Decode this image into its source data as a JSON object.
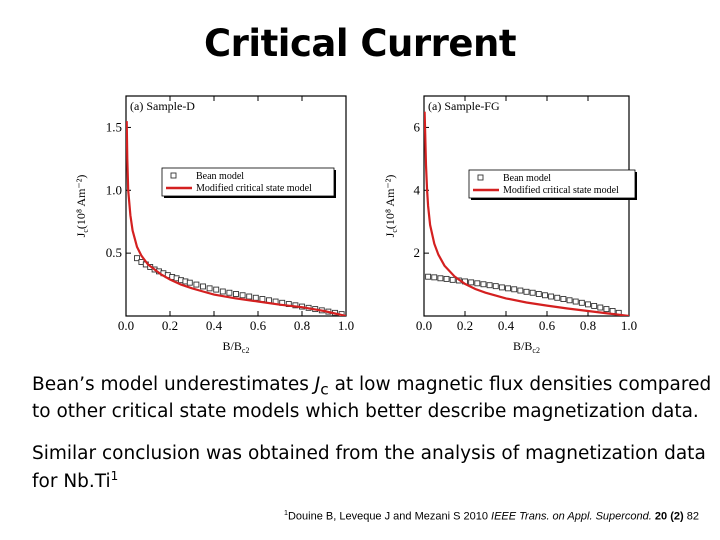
{
  "slide": {
    "title": "Critical Current",
    "paragraph1": {
      "before": "Bean’s model underestimates ",
      "J": "J",
      "sub": "c",
      "after": " at low magnetic flux densities compared to other critical state models which better describe magnetization data."
    },
    "paragraph2": {
      "text": "Similar conclusion was obtained from the analysis of magnetization data for Nb.Ti",
      "sup": "1"
    },
    "citation": {
      "sup": "1",
      "authors": "Douine B, Leveque J and Mezani S 2010 ",
      "journal": "IEEE Trans. on Appl. Supercond.",
      "volume": "20",
      "issue": "(2)",
      "page": "82"
    }
  },
  "colors": {
    "modified_line": "#d42020",
    "bean_marker": "#333333"
  },
  "chart_data": [
    {
      "type": "scatter",
      "panel_label": "(a) Sample-D",
      "xlabel": "B/B",
      "xlabel_sub": "c2",
      "ylabel": "J",
      "ylabel_sub": "c",
      "ylabel_rest": "(10⁸ Am⁻²)",
      "xlim": [
        0,
        1.0
      ],
      "ylim": [
        0,
        1.75
      ],
      "xticks": [
        "0.0",
        "0.2",
        "0.4",
        "0.6",
        "0.8",
        "1.0"
      ],
      "yticks": [
        "0.5",
        "1.0",
        "1.5"
      ],
      "legend_position": "upper-right",
      "series": [
        {
          "name": "Bean model",
          "kind": "markers",
          "x": [
            0.05,
            0.07,
            0.09,
            0.11,
            0.13,
            0.15,
            0.17,
            0.19,
            0.21,
            0.23,
            0.25,
            0.27,
            0.29,
            0.32,
            0.35,
            0.38,
            0.41,
            0.44,
            0.47,
            0.5,
            0.53,
            0.56,
            0.59,
            0.62,
            0.65,
            0.68,
            0.71,
            0.74,
            0.77,
            0.8,
            0.83,
            0.86,
            0.89,
            0.92,
            0.95,
            0.98
          ],
          "y": [
            0.46,
            0.43,
            0.41,
            0.39,
            0.37,
            0.355,
            0.34,
            0.325,
            0.31,
            0.3,
            0.285,
            0.275,
            0.265,
            0.25,
            0.235,
            0.22,
            0.21,
            0.195,
            0.185,
            0.175,
            0.165,
            0.155,
            0.145,
            0.135,
            0.125,
            0.115,
            0.105,
            0.095,
            0.085,
            0.075,
            0.065,
            0.055,
            0.045,
            0.035,
            0.025,
            0.015
          ]
        },
        {
          "name": "Modified critical state model",
          "kind": "line",
          "x": [
            0.003,
            0.006,
            0.01,
            0.02,
            0.03,
            0.05,
            0.07,
            0.1,
            0.13,
            0.16,
            0.2,
            0.25,
            0.3,
            0.35,
            0.4,
            0.5,
            0.6,
            0.7,
            0.8,
            0.85,
            0.9,
            0.95,
            1.0
          ],
          "y": [
            1.55,
            1.25,
            1.0,
            0.8,
            0.68,
            0.55,
            0.48,
            0.41,
            0.37,
            0.33,
            0.29,
            0.25,
            0.22,
            0.195,
            0.17,
            0.14,
            0.115,
            0.09,
            0.07,
            0.055,
            0.04,
            0.02,
            0.0
          ]
        }
      ]
    },
    {
      "type": "scatter",
      "panel_label": "(a) Sample-FG",
      "xlabel": "B/B",
      "xlabel_sub": "c2",
      "ylabel": "J",
      "ylabel_sub": "c",
      "ylabel_rest": "(10⁸ Am⁻²)",
      "xlim": [
        0,
        1.0
      ],
      "ylim": [
        0,
        7
      ],
      "xticks": [
        "0.0",
        "0.2",
        "0.4",
        "0.6",
        "0.8",
        "1.0"
      ],
      "yticks": [
        "2",
        "4",
        "6"
      ],
      "legend_position": "upper-right",
      "series": [
        {
          "name": "Bean model",
          "kind": "markers",
          "x": [
            0.02,
            0.05,
            0.08,
            0.11,
            0.14,
            0.17,
            0.2,
            0.23,
            0.26,
            0.29,
            0.32,
            0.35,
            0.38,
            0.41,
            0.44,
            0.47,
            0.5,
            0.53,
            0.56,
            0.59,
            0.62,
            0.65,
            0.68,
            0.71,
            0.74,
            0.77,
            0.8,
            0.83,
            0.86,
            0.89,
            0.92,
            0.95
          ],
          "y": [
            1.25,
            1.23,
            1.2,
            1.18,
            1.15,
            1.13,
            1.1,
            1.07,
            1.04,
            1.01,
            0.98,
            0.95,
            0.91,
            0.88,
            0.85,
            0.81,
            0.77,
            0.74,
            0.7,
            0.66,
            0.62,
            0.58,
            0.54,
            0.5,
            0.46,
            0.42,
            0.37,
            0.32,
            0.27,
            0.22,
            0.16,
            0.1
          ]
        },
        {
          "name": "Modified critical state model",
          "kind": "line",
          "x": [
            0.003,
            0.006,
            0.01,
            0.015,
            0.02,
            0.03,
            0.05,
            0.07,
            0.1,
            0.15,
            0.2,
            0.25,
            0.3,
            0.4,
            0.5,
            0.6,
            0.7,
            0.8,
            0.9,
            0.95,
            1.0
          ],
          "y": [
            6.5,
            5.8,
            4.8,
            4.0,
            3.5,
            2.9,
            2.3,
            1.95,
            1.6,
            1.25,
            1.02,
            0.86,
            0.74,
            0.56,
            0.43,
            0.33,
            0.24,
            0.16,
            0.08,
            0.04,
            0.0
          ]
        }
      ]
    }
  ]
}
